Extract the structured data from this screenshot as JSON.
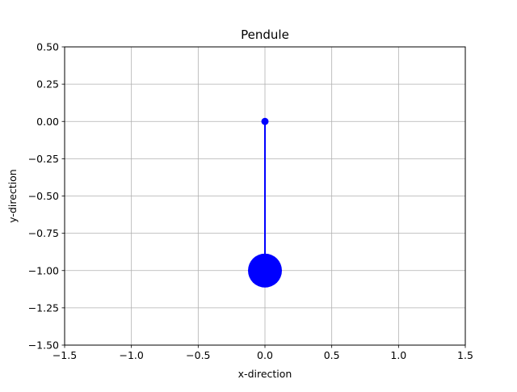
{
  "chart_data": {
    "type": "scatter",
    "title": "Pendule",
    "xlabel": "x-direction",
    "ylabel": "y-direction",
    "xlim": [
      -1.5,
      1.5
    ],
    "ylim": [
      -1.5,
      0.5
    ],
    "grid": true,
    "x_ticks": [
      -1.5,
      -1.0,
      -0.5,
      0.0,
      0.5,
      1.0,
      1.5
    ],
    "y_ticks": [
      0.5,
      0.25,
      0.0,
      -0.25,
      -0.5,
      -0.75,
      -1.0,
      -1.25,
      -1.5
    ],
    "x_tick_labels": [
      "−1.5",
      "−1.0",
      "−0.5",
      "0.0",
      "0.5",
      "1.0",
      "1.5"
    ],
    "y_tick_labels": [
      "0.50",
      "0.25",
      "0.00",
      "−0.25",
      "−0.50",
      "−0.75",
      "−1.00",
      "−1.25",
      "−1.50"
    ],
    "series": [
      {
        "kind": "rod",
        "points": [
          {
            "x": 0.0,
            "y": 0.0
          },
          {
            "x": 0.0,
            "y": -1.0
          }
        ],
        "color": "#0000ff"
      },
      {
        "kind": "pivot",
        "x": 0.0,
        "y": 0.0,
        "color": "#0000ff"
      },
      {
        "kind": "bob",
        "x": 0.0,
        "y": -1.0,
        "color": "#0000ff"
      }
    ],
    "colors": {
      "line": "#0000ff",
      "grid": "#b0b0b0",
      "axes": "#000000",
      "background": "#ffffff"
    }
  }
}
